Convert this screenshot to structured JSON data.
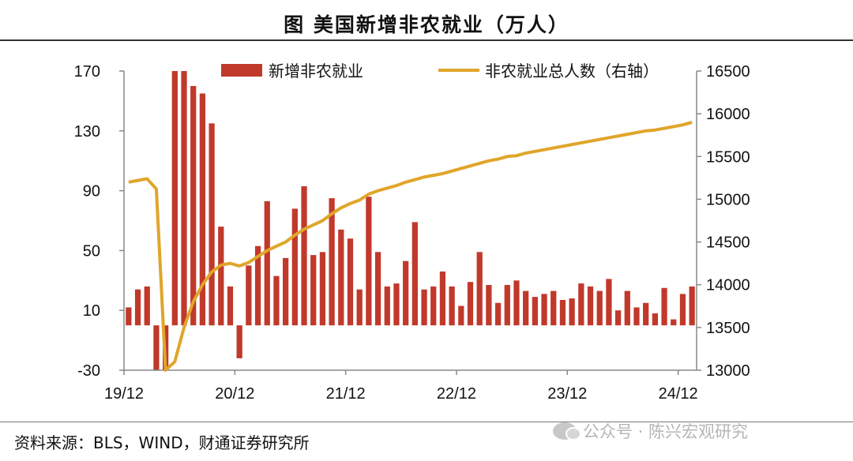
{
  "page": {
    "title": "图  美国新增非农就业（万人）",
    "source": "资料来源：BLS，WIND，财通证券研究所",
    "watermark": "公众号 · 陈兴宏观研究"
  },
  "colors": {
    "bar": "#c0392b",
    "line": "#e0a52a",
    "axis": "#888888"
  },
  "chart_data": {
    "type": "bar",
    "title": "美国新增非农就业（万人）",
    "legend": [
      "新增非农就业",
      "非农就业总人数（右轴）"
    ],
    "x_tick_labels": [
      "19/12",
      "20/12",
      "21/12",
      "22/12",
      "23/12",
      "24/12"
    ],
    "y_left_ticks": [
      "170",
      "130",
      "90",
      "50",
      "10",
      "-30"
    ],
    "y_right_ticks": [
      "16500",
      "16000",
      "15500",
      "15000",
      "14500",
      "14000",
      "13500",
      "13000"
    ],
    "ylim_left": [
      -30,
      170
    ],
    "ylim_right": [
      13000,
      16500
    ],
    "series": [
      {
        "name": "新增非农就业",
        "axis": "left",
        "values": [
          12,
          24,
          26,
          -30,
          -30,
          170,
          170,
          160,
          155,
          135,
          66,
          26,
          -22,
          40,
          53,
          83,
          33,
          45,
          78,
          93,
          47,
          49,
          85,
          64,
          58,
          24,
          86,
          49,
          26,
          28,
          43,
          69,
          24,
          26,
          36,
          26,
          13,
          29,
          49,
          27,
          15,
          27,
          30,
          23,
          19,
          21,
          23,
          17,
          18,
          28,
          26,
          23,
          31,
          10,
          23,
          12,
          15,
          8,
          25,
          4,
          21,
          26
        ]
      },
      {
        "name": "非农就业总人数（右轴）",
        "axis": "right",
        "values": [
          15200,
          15220,
          15240,
          15120,
          13000,
          13100,
          13500,
          13800,
          14000,
          14150,
          14230,
          14250,
          14220,
          14260,
          14330,
          14400,
          14450,
          14500,
          14580,
          14650,
          14700,
          14750,
          14830,
          14900,
          14950,
          14990,
          15060,
          15100,
          15130,
          15160,
          15200,
          15230,
          15260,
          15280,
          15300,
          15330,
          15360,
          15390,
          15420,
          15450,
          15470,
          15500,
          15510,
          15540,
          15560,
          15580,
          15600,
          15620,
          15640,
          15660,
          15680,
          15700,
          15720,
          15740,
          15760,
          15780,
          15800,
          15810,
          15830,
          15850,
          15870,
          15900
        ]
      }
    ]
  }
}
